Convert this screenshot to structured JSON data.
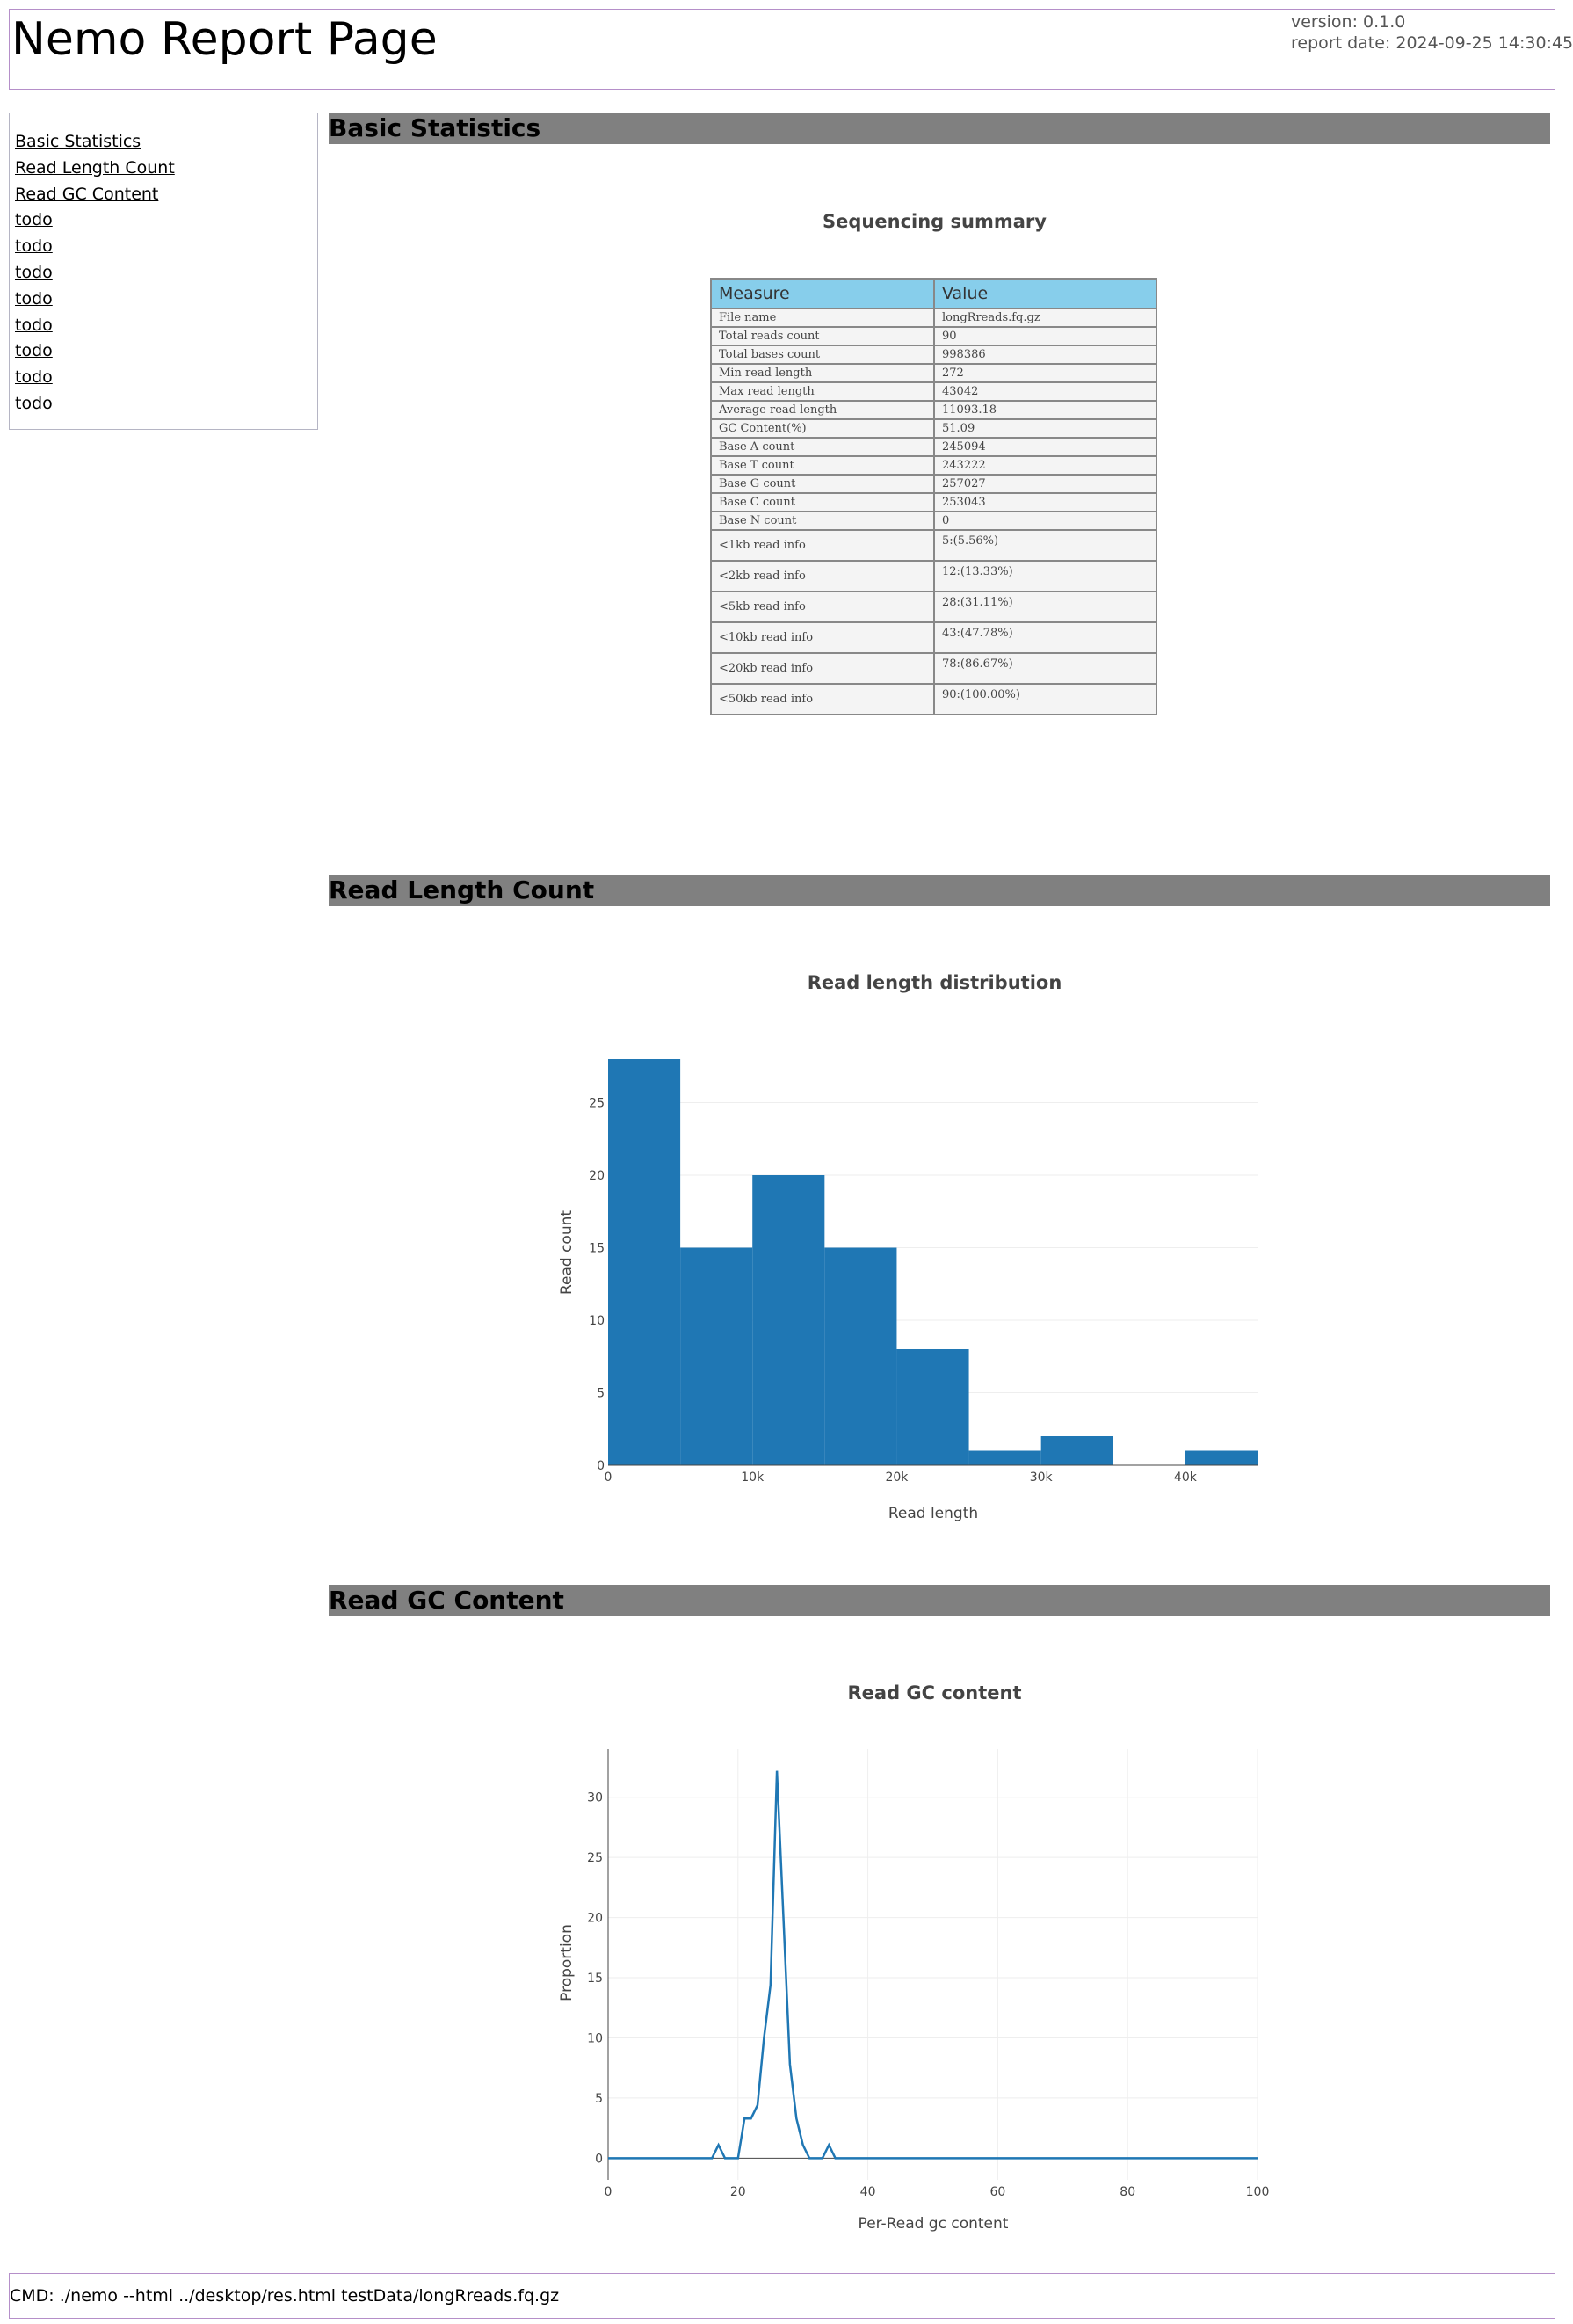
{
  "header": {
    "title": "Nemo Report Page",
    "version": "version: 0.1.0",
    "report_date": "report date: 2024-09-25 14:30:45"
  },
  "sidebar": {
    "items": [
      {
        "label": "Basic Statistics"
      },
      {
        "label": "Read Length Count"
      },
      {
        "label": "Read GC Content"
      },
      {
        "label": "todo"
      },
      {
        "label": "todo"
      },
      {
        "label": "todo"
      },
      {
        "label": "todo"
      },
      {
        "label": "todo"
      },
      {
        "label": "todo"
      },
      {
        "label": "todo"
      },
      {
        "label": "todo"
      }
    ]
  },
  "sections": {
    "basic": "Basic Statistics",
    "length": "Read Length Count",
    "gc": "Read GC Content"
  },
  "summary": {
    "title": "Sequencing summary",
    "headers": [
      "Measure",
      "Value"
    ],
    "rows": [
      [
        "File name",
        "longRreads.fq.gz"
      ],
      [
        "Total reads count",
        "90"
      ],
      [
        "Total bases count",
        "998386"
      ],
      [
        "Min read length",
        "272"
      ],
      [
        "Max read length",
        "43042"
      ],
      [
        "Average read length",
        "11093.18"
      ],
      [
        "GC Content(%)",
        "51.09"
      ],
      [
        "Base A count",
        "245094"
      ],
      [
        "Base T count",
        "243222"
      ],
      [
        "Base G count",
        "257027"
      ],
      [
        "Base C count",
        "253043"
      ],
      [
        "Base N count",
        "0"
      ],
      [
        "<1kb read info",
        "5:(5.56%)"
      ],
      [
        "<2kb read info",
        "12:(13.33%)"
      ],
      [
        "<5kb read info",
        "28:(31.11%)"
      ],
      [
        "<10kb read info",
        "43:(47.78%)"
      ],
      [
        "<20kb read info",
        "78:(86.67%)"
      ],
      [
        "<50kb read info",
        "90:(100.00%)"
      ]
    ]
  },
  "chart_data": [
    {
      "type": "bar",
      "title": "Read length distribution",
      "xlabel": "Read length",
      "ylabel": "Read count",
      "bin_width": 5000,
      "x": [
        0,
        5000,
        10000,
        15000,
        20000,
        25000,
        30000,
        35000,
        40000
      ],
      "values": [
        28,
        15,
        20,
        15,
        8,
        1,
        2,
        0,
        1
      ],
      "xlim": [
        0,
        45000
      ],
      "ylim": [
        0,
        28
      ],
      "xticks": [
        0,
        10000,
        20000,
        30000,
        40000
      ],
      "xtick_labels": [
        "0",
        "10k",
        "20k",
        "30k",
        "40k"
      ],
      "yticks": [
        0,
        5,
        10,
        15,
        20,
        25
      ],
      "ytick_labels": [
        "0",
        "5",
        "10",
        "15",
        "20",
        "25"
      ],
      "color": "#1f77b4",
      "grid": true
    },
    {
      "type": "line",
      "title": "Read GC content",
      "xlabel": "Per-Read gc content",
      "ylabel": "Proportion",
      "x": [
        0,
        15,
        16,
        17,
        18,
        19,
        20,
        21,
        22,
        23,
        24,
        25,
        26,
        27,
        28,
        29,
        30,
        31,
        32,
        33,
        34,
        35,
        36,
        100
      ],
      "y": [
        0,
        0,
        0,
        1.1,
        0,
        0,
        0,
        3.3,
        3.3,
        4.4,
        10,
        14.4,
        32.2,
        20,
        7.8,
        3.3,
        1.1,
        0,
        0,
        0,
        1.1,
        0,
        0,
        0
      ],
      "xlim": [
        0,
        100
      ],
      "ylim": [
        -1.8,
        34
      ],
      "xticks": [
        0,
        20,
        40,
        60,
        80,
        100
      ],
      "yticks": [
        0,
        5,
        10,
        15,
        20,
        25,
        30
      ],
      "color": "#1f77b4",
      "grid": true
    }
  ],
  "footer": {
    "cmd": "CMD: ./nemo --html ../desktop/res.html testData/longRreads.fq.gz"
  }
}
